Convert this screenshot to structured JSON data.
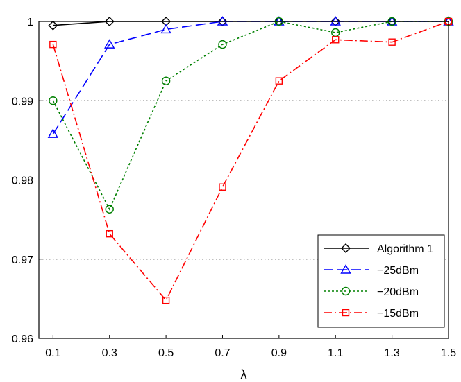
{
  "chart_data": {
    "type": "line",
    "xlabel": "λ",
    "ylabel": "",
    "title": "",
    "x": [
      0.1,
      0.3,
      0.5,
      0.7,
      0.9,
      1.1,
      1.3,
      1.5
    ],
    "x_tick_labels": [
      "0.1",
      "0.3",
      "0.5",
      "0.7",
      "0.9",
      "1.1",
      "1.3",
      "1.5"
    ],
    "y_ticks": [
      0.96,
      0.97,
      0.98,
      0.99,
      1.0
    ],
    "y_tick_labels": [
      "0.96",
      "0.97",
      "0.98",
      "0.99",
      "1"
    ],
    "xlim": [
      0.05,
      1.5
    ],
    "ylim": [
      0.96,
      1.0
    ],
    "grid": "horizontal dotted",
    "legend_position": "bottom-right",
    "series": [
      {
        "name": "Algorithm 1",
        "color": "#000000",
        "dash": "solid",
        "marker": "diamond",
        "values": [
          0.9995,
          1.0,
          1.0,
          1.0,
          1.0,
          1.0,
          1.0,
          1.0
        ]
      },
      {
        "name": "−25dBm",
        "color": "#0000ff",
        "dash": "dashed",
        "marker": "triangle",
        "values": [
          0.9858,
          0.9971,
          0.999,
          1.0,
          1.0,
          1.0,
          1.0,
          1.0
        ]
      },
      {
        "name": "−20dBm",
        "color": "#008000",
        "dash": "dotted",
        "marker": "circle",
        "values": [
          0.99,
          0.9763,
          0.9925,
          0.9971,
          1.0,
          0.9986,
          1.0,
          1.0
        ]
      },
      {
        "name": "−15dBm",
        "color": "#ff0000",
        "dash": "dashdot",
        "marker": "square",
        "values": [
          0.9971,
          0.9732,
          0.9648,
          0.9791,
          0.9925,
          0.9977,
          0.9974,
          1.0
        ]
      }
    ]
  }
}
